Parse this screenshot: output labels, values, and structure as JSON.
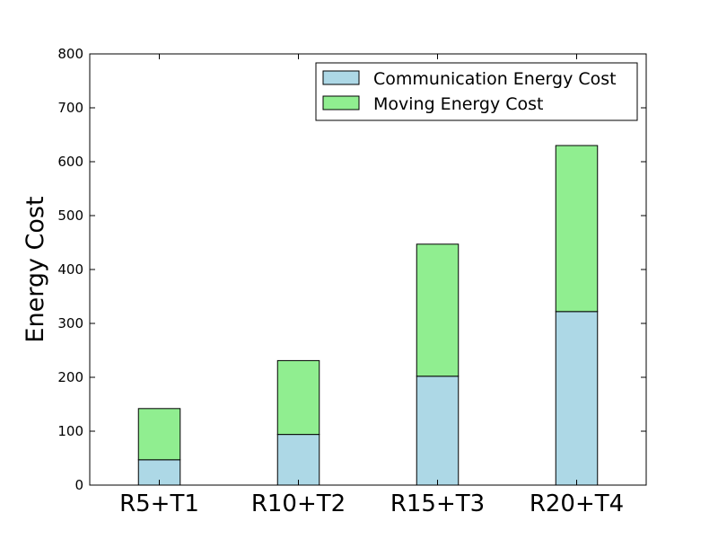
{
  "chart_data": {
    "type": "bar",
    "stacked": true,
    "categories": [
      "R5+T1",
      "R10+T2",
      "R15+T3",
      "R20+T4"
    ],
    "series": [
      {
        "name": "Communication Energy Cost",
        "values": [
          47,
          94,
          202,
          322
        ],
        "color": "#add8e6"
      },
      {
        "name": "Moving Energy Cost",
        "values": [
          95,
          137,
          245,
          308
        ],
        "color": "#90ee90"
      }
    ],
    "title": "",
    "xlabel": "",
    "ylabel": "Energy Cost",
    "ylim": [
      0,
      800
    ],
    "yticks": [
      0,
      100,
      200,
      300,
      400,
      500,
      600,
      700,
      800
    ],
    "grid": false,
    "legend_position": "top-right"
  }
}
